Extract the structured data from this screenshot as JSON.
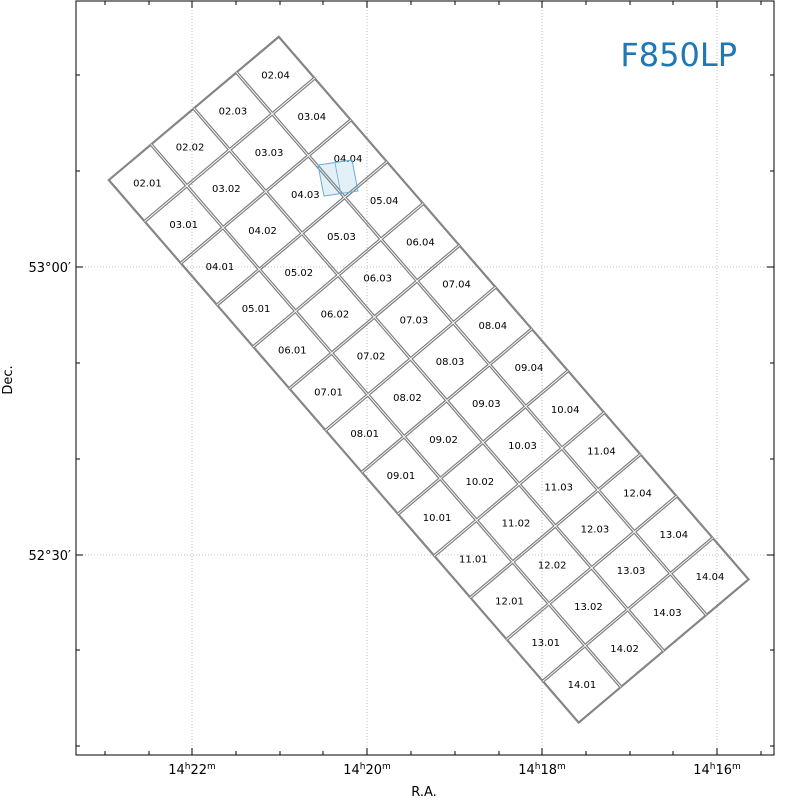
{
  "chart_data": {
    "type": "diagram",
    "filter_label": "F850LP",
    "xlabel": "R.A.",
    "ylabel": "Dec.",
    "grid": true,
    "x_ticks": [
      {
        "label_h": "14",
        "label_m": "22"
      },
      {
        "label_h": "14",
        "label_m": "20"
      },
      {
        "label_h": "14",
        "label_m": "18"
      },
      {
        "label_h": "14",
        "label_m": "16"
      }
    ],
    "y_ticks": [
      {
        "label": "52°30′"
      },
      {
        "label": "53°00′"
      }
    ],
    "chip_labels": [
      [
        "02.01",
        "02.02",
        "02.03",
        "02.04"
      ],
      [
        "03.01",
        "03.02",
        "03.03",
        "03.04"
      ],
      [
        "04.01",
        "04.02",
        "04.03",
        "04.04"
      ],
      [
        "05.01",
        "05.02",
        "05.03",
        "05.04"
      ],
      [
        "06.01",
        "06.02",
        "06.03",
        "06.04"
      ],
      [
        "07.01",
        "07.02",
        "07.03",
        "07.04"
      ],
      [
        "08.01",
        "08.02",
        "08.03",
        "08.04"
      ],
      [
        "09.01",
        "09.02",
        "09.03",
        "09.04"
      ],
      [
        "10.01",
        "10.02",
        "10.03",
        "10.04"
      ],
      [
        "11.01",
        "11.02",
        "11.03",
        "11.04"
      ],
      [
        "12.01",
        "12.02",
        "12.03",
        "12.04"
      ],
      [
        "13.01",
        "13.02",
        "13.03",
        "13.04"
      ],
      [
        "14.01",
        "14.02",
        "14.03",
        "14.04"
      ]
    ],
    "highlight": {
      "color": "#6baed6",
      "near_chip": "04.03"
    },
    "colors": {
      "chip_edge": "#808080",
      "grid": "#b0b0b0",
      "filter_label": "#1f77b4"
    }
  }
}
